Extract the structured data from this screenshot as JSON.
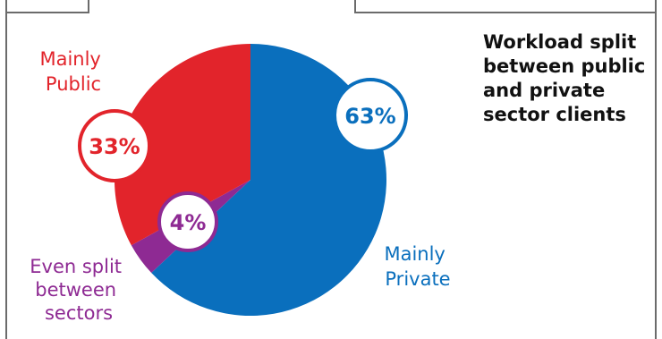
{
  "chart_data": {
    "type": "pie",
    "title": "Workload split between public and private sector clients",
    "slices": [
      {
        "label": "Mainly Private",
        "value": 63,
        "display": "63%",
        "color": "#0a6fbd"
      },
      {
        "label": "Even split between sectors",
        "value": 4,
        "display": "4%",
        "color": "#8e2a93"
      },
      {
        "label": "Mainly Public",
        "value": 33,
        "display": "33%",
        "color": "#e2242b"
      }
    ],
    "legend": "none"
  }
}
